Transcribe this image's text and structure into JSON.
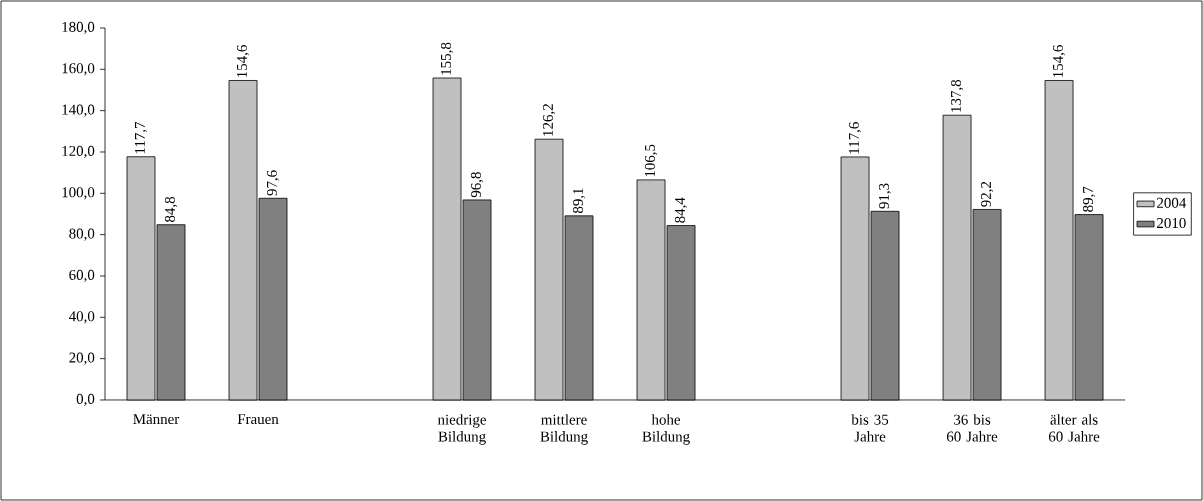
{
  "chart_data": {
    "type": "bar",
    "categories": [
      "Männer",
      "Frauen",
      null,
      "niedrige Bildung",
      "mittlere Bildung",
      "hohe Bildung",
      null,
      "bis 35 Jahre",
      "36 bis 60 Jahre",
      "älter als 60 Jahre"
    ],
    "series": [
      {
        "name": "2004",
        "color": "#c0c0c0",
        "values": [
          117.7,
          154.6,
          null,
          155.8,
          126.2,
          106.5,
          null,
          117.6,
          137.8,
          154.6
        ],
        "value_labels": [
          "117,7",
          "154,6",
          null,
          "155,8",
          "126,2",
          "106,5",
          null,
          "117,6",
          "137,8",
          "154,6"
        ]
      },
      {
        "name": "2010",
        "color": "#808080",
        "values": [
          84.8,
          97.6,
          null,
          96.8,
          89.1,
          84.4,
          null,
          91.3,
          92.2,
          89.7
        ],
        "value_labels": [
          "84,8",
          "97,6",
          null,
          "96,8",
          "89,1",
          "84,4",
          null,
          "91,3",
          "92,2",
          "89,7"
        ]
      }
    ],
    "ylim": [
      0,
      180
    ],
    "yticks": [
      {
        "value": 0,
        "label": "0,0"
      },
      {
        "value": 20,
        "label": "20,0"
      },
      {
        "value": 40,
        "label": "40,0"
      },
      {
        "value": 60,
        "label": "60,0"
      },
      {
        "value": 80,
        "label": "80,0"
      },
      {
        "value": 100,
        "label": "100,0"
      },
      {
        "value": 120,
        "label": "120,0"
      },
      {
        "value": 140,
        "label": "140,0"
      },
      {
        "value": 160,
        "label": "160,0"
      },
      {
        "value": 180,
        "label": "180,0"
      }
    ],
    "legend": "right",
    "grid": false
  }
}
